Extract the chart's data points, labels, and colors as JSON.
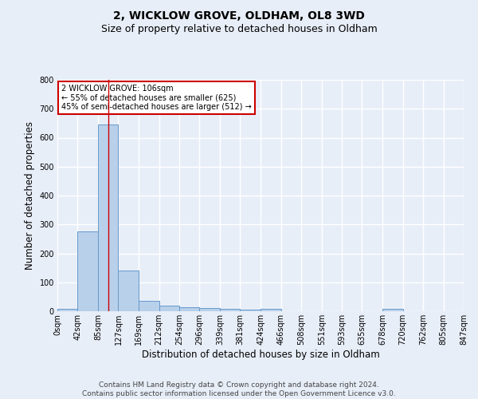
{
  "title": "2, WICKLOW GROVE, OLDHAM, OL8 3WD",
  "subtitle": "Size of property relative to detached houses in Oldham",
  "xlabel": "Distribution of detached houses by size in Oldham",
  "ylabel": "Number of detached properties",
  "bin_edges": [
    0,
    42,
    85,
    127,
    169,
    212,
    254,
    296,
    339,
    381,
    424,
    466,
    508,
    551,
    593,
    635,
    678,
    720,
    762,
    805,
    847
  ],
  "bin_counts": [
    8,
    275,
    645,
    140,
    35,
    20,
    13,
    11,
    8,
    6,
    7,
    0,
    0,
    0,
    0,
    0,
    7,
    0,
    0,
    0
  ],
  "bar_color": "#b8d0ea",
  "bar_edge_color": "#6699cc",
  "bg_color": "#e8eef8",
  "grid_color": "#ffffff",
  "red_line_x": 106,
  "annotation_text": "2 WICKLOW GROVE: 106sqm\n← 55% of detached houses are smaller (625)\n45% of semi-detached houses are larger (512) →",
  "annotation_box_color": "#ffffff",
  "annotation_box_edge": "#cc0000",
  "ylim": [
    0,
    800
  ],
  "yticks": [
    0,
    100,
    200,
    300,
    400,
    500,
    600,
    700,
    800
  ],
  "tick_labels": [
    "0sqm",
    "42sqm",
    "85sqm",
    "127sqm",
    "169sqm",
    "212sqm",
    "254sqm",
    "296sqm",
    "339sqm",
    "381sqm",
    "424sqm",
    "466sqm",
    "508sqm",
    "551sqm",
    "593sqm",
    "635sqm",
    "678sqm",
    "720sqm",
    "762sqm",
    "805sqm",
    "847sqm"
  ],
  "footer": "Contains HM Land Registry data © Crown copyright and database right 2024.\nContains public sector information licensed under the Open Government Licence v3.0.",
  "title_fontsize": 10,
  "subtitle_fontsize": 9,
  "label_fontsize": 8.5,
  "tick_fontsize": 7,
  "footer_fontsize": 6.5,
  "annotation_fontsize": 7
}
